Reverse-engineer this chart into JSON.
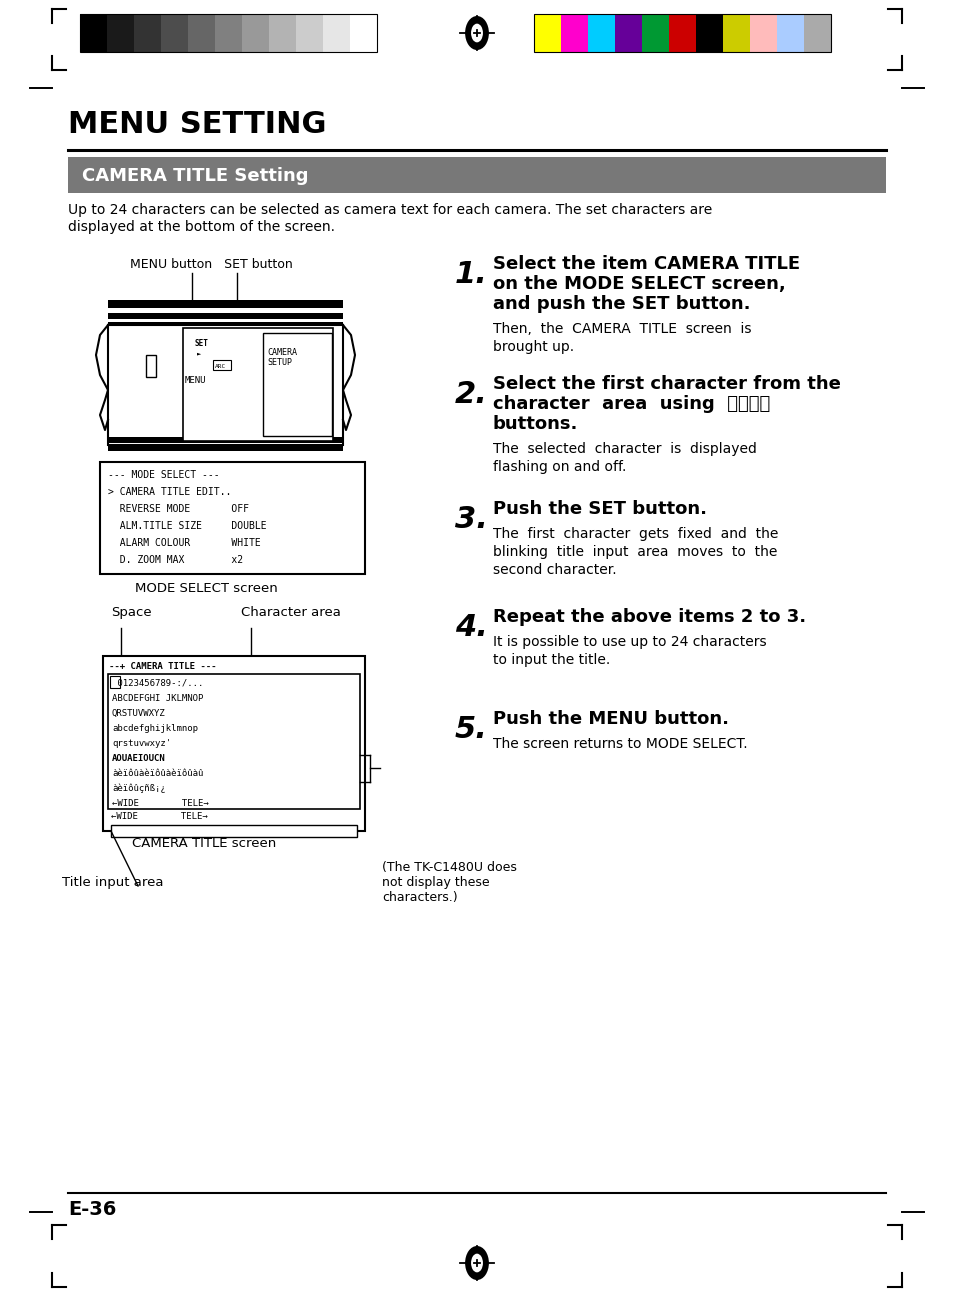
{
  "title": "MENU SETTING",
  "section_title": "CAMERA TITLE Setting",
  "intro_line1": "Up to 24 characters can be selected as camera text for each camera. The set characters are",
  "intro_line2": "displayed at the bottom of the screen.",
  "page_number": "E-36",
  "grayscale_colors": [
    "#000000",
    "#1a1a1a",
    "#333333",
    "#4d4d4d",
    "#666666",
    "#808080",
    "#999999",
    "#b3b3b3",
    "#cccccc",
    "#e6e6e6",
    "#ffffff"
  ],
  "color_bar": [
    "#ffff00",
    "#ff00cc",
    "#00ccff",
    "#660099",
    "#009933",
    "#cc0000",
    "#000000",
    "#cccc00",
    "#ffbbbb",
    "#aaccff",
    "#aaaaaa"
  ],
  "steps": [
    {
      "number": "1.",
      "bold": "Select the item CAMERA TITLE\non the MODE SELECT screen,\nand push the SET button.",
      "normal": "Then,  the  CAMERA  TITLE  screen  is\nbrought up."
    },
    {
      "number": "2.",
      "bold": "Select the first character from the\ncharacter  area  using  ⒸⒽⒼⒸ\nbuttons.",
      "normal": "The  selected  character  is  displayed\nflashing on and off."
    },
    {
      "number": "3.",
      "bold": "Push the SET button.",
      "normal": "The  first  character  gets  fixed  and  the\nblinking  title  input  area  moves  to  the\nsecond character."
    },
    {
      "number": "4.",
      "bold": "Repeat the above items 2 to 3.",
      "normal": "It is possible to use up to 24 characters\nto input the title."
    },
    {
      "number": "5.",
      "bold": "Push the MENU button.",
      "normal": "The screen returns to MODE SELECT."
    }
  ],
  "mode_select_lines": [
    "--- MODE SELECT ---",
    "> CAMERA TITLE EDIT..",
    "  REVERSE MODE       OFF",
    "  ALM.TITLE SIZE     DOUBLE",
    "  ALARM COLOUR       WHITE",
    "  D. ZOOM MAX        x2"
  ],
  "camera_title_lines": [
    "--+ CAMERA TITLE ---",
    " 0123456789-:/...",
    "ABCDEFGHI JKLMNOP",
    "QRSTUVWXYZ",
    "abcdefghijklmnop",
    "qrstuvwxyz'",
    "AOUAEIOUCN",
    "àèïôûàèïôûàèïôûàû",
    "àèïôûçñß¡¿",
    "←WIDE        TELE→"
  ],
  "menu_button_label": "MENU button   SET button",
  "mode_select_label": "MODE SELECT screen",
  "camera_title_screen_label": "CAMERA TITLE screen",
  "space_label": "Space",
  "char_area_label": "Character area",
  "title_input_label": "Title input area",
  "tk_note": "(The TK-C1480U does\nnot display these\ncharacters.)"
}
